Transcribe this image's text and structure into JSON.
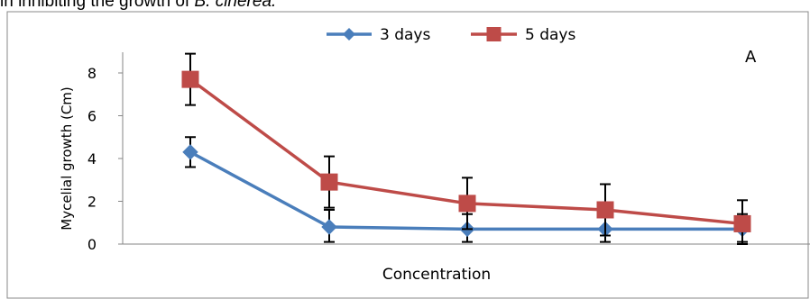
{
  "caption": {
    "prefix": "in inhibiting the growth of ",
    "italic": "B. cinerea."
  },
  "colors": {
    "series_3": "#4a7ebb",
    "series_5": "#be4b48",
    "error": "#000000",
    "frame": "#888888",
    "axis": "#868686"
  },
  "chart_data": {
    "type": "line",
    "panel_label": "A",
    "xlabel": "Concentration",
    "ylabel": "Mycelial growth (Cm)",
    "ylim": [
      0,
      8.8
    ],
    "yticks": [
      0,
      2,
      4,
      6,
      8
    ],
    "ytick_labels": [
      "0",
      "2",
      "4",
      "6",
      "8"
    ],
    "grid": false,
    "legend_position": "top-center",
    "categories": [
      "",
      "",
      "",
      "",
      ""
    ],
    "series": [
      {
        "name": "3 days",
        "marker": "diamond",
        "color": "#4a7ebb",
        "values": [
          4.3,
          0.8,
          0.7,
          0.7,
          0.7
        ],
        "error_up": [
          0.7,
          0.8,
          0.7,
          0.7,
          0.7
        ],
        "error_down": [
          0.7,
          0.7,
          0.6,
          0.6,
          0.6
        ]
      },
      {
        "name": "5 days",
        "marker": "square",
        "color": "#be4b48",
        "values": [
          7.7,
          2.9,
          1.9,
          1.6,
          0.95
        ],
        "error_up": [
          1.2,
          1.2,
          1.2,
          1.2,
          1.1
        ],
        "error_down": [
          1.2,
          1.2,
          1.2,
          1.2,
          0.95
        ]
      }
    ]
  }
}
